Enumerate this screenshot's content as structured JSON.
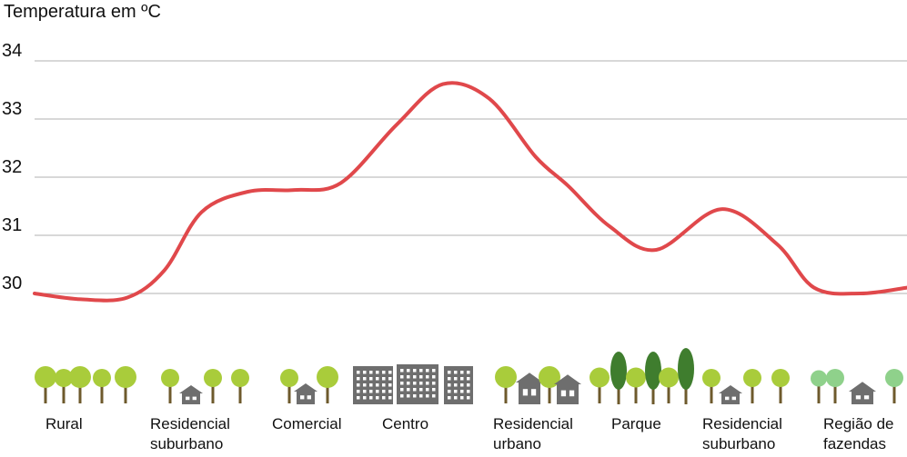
{
  "chart_data": {
    "type": "line",
    "ylabel": "Temperatura em ºC",
    "ylim": [
      30,
      34
    ],
    "yticks": [
      "30",
      "31",
      "32",
      "33",
      "34"
    ],
    "grid": true,
    "categories": [
      {
        "label": "Rural",
        "icon": "trees-icon"
      },
      {
        "label": "Residencial\nsuburbano",
        "icon": "house-trees-icon"
      },
      {
        "label": "Comercial",
        "icon": "shop-trees-icon"
      },
      {
        "label": "Centro",
        "icon": "office-buildings-icon"
      },
      {
        "label": "Residencial\nurbano",
        "icon": "townhouses-trees-icon"
      },
      {
        "label": "Parque",
        "icon": "park-trees-icon"
      },
      {
        "label": "Residencial\nsuburbano",
        "icon": "house-trees-icon"
      },
      {
        "label": "Região de\nfazendas",
        "icon": "farm-trees-icon"
      }
    ],
    "series": [
      {
        "color": "#e0484b",
        "points": [
          [
            0.0,
            30.0
          ],
          [
            0.5,
            29.9
          ],
          [
            1.0,
            29.93
          ],
          [
            1.4,
            30.4
          ],
          [
            1.8,
            31.4
          ],
          [
            2.3,
            31.75
          ],
          [
            2.8,
            31.78
          ],
          [
            3.3,
            31.9
          ],
          [
            3.9,
            32.9
          ],
          [
            4.4,
            33.6
          ],
          [
            4.9,
            33.35
          ],
          [
            5.4,
            32.35
          ],
          [
            5.75,
            31.85
          ],
          [
            6.2,
            31.15
          ],
          [
            6.7,
            30.75
          ],
          [
            7.4,
            31.45
          ],
          [
            8.0,
            30.85
          ],
          [
            8.4,
            30.1
          ],
          [
            8.9,
            30.0
          ],
          [
            9.4,
            30.1
          ]
        ]
      }
    ],
    "colors": {
      "line": "#e0484b",
      "grid": "#b0b0b0",
      "tree": "#a9cc3b",
      "trunk": "#6e5a2c",
      "building": "#6e6e6e"
    }
  }
}
